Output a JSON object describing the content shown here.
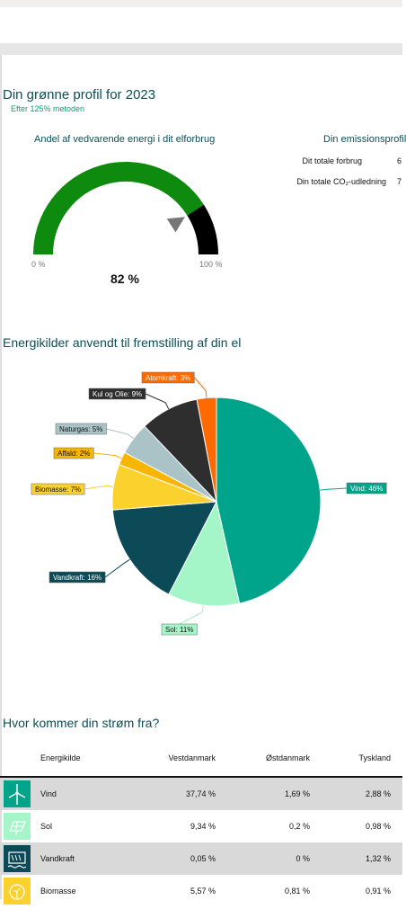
{
  "profile": {
    "title": "Din grønne profil for 2023",
    "subtitle": "Efter 125% metoden"
  },
  "gauge": {
    "title": "Andel af vedvarende energi i dit elforbrug",
    "min_label": "0 %",
    "max_label": "100 %",
    "value_label": "82 %",
    "value": 82,
    "colors": {
      "renewable": "#0e8a0e",
      "rest": "#000000",
      "pointer": "#777777"
    }
  },
  "emissions": {
    "title": "Din emissionsprofil",
    "rows": [
      {
        "label": "Dit totale forbrug",
        "value": "6"
      },
      {
        "label": "Din totale CO₂-udledning",
        "value": "7"
      }
    ]
  },
  "energy_sources": {
    "title": "Energikilder anvendt til fremstilling af din el"
  },
  "chart_data": {
    "type": "pie",
    "title": "Energikilder anvendt til fremstilling af din el",
    "slices": [
      {
        "label": "Vind: 46%",
        "name": "Vind",
        "value": 46,
        "color": "#00a48a"
      },
      {
        "label": "Sol: 11%",
        "name": "Sol",
        "value": 11,
        "color": "#a4f6c8"
      },
      {
        "label": "Vandkraft: 16%",
        "name": "Vandkraft",
        "value": 16,
        "color": "#0d4a57"
      },
      {
        "label": "Biomasse: 7%",
        "name": "Biomasse",
        "value": 7,
        "color": "#fad12d"
      },
      {
        "label": "Affald: 2%",
        "name": "Affald",
        "value": 2,
        "color": "#f7b500"
      },
      {
        "label": "Naturgas: 5%",
        "name": "Naturgas",
        "value": 5,
        "color": "#a9c3c6"
      },
      {
        "label": "Kul og Olie: 9%",
        "name": "Kul og Olie",
        "value": 9,
        "color": "#2e2e2e"
      },
      {
        "label": "Atomkraft: 3%",
        "name": "Atomkraft",
        "value": 3,
        "color": "#ff6a00"
      }
    ]
  },
  "where": {
    "title": "Hvor kommer din strøm fra?",
    "columns": [
      "Energikilde",
      "Vestdanmark",
      "Østdanmark",
      "Tyskland"
    ],
    "rows": [
      {
        "icon": "wind-turbine-icon",
        "name": "Vind",
        "values": [
          "37,74 %",
          "1,69 %",
          "2,88 %"
        ],
        "icon_bg": "#00a48a"
      },
      {
        "icon": "solar-panel-icon",
        "name": "Sol",
        "values": [
          "9,34 %",
          "0,2 %",
          "0,98 %"
        ],
        "icon_bg": "#a4f6c8"
      },
      {
        "icon": "hydro-dam-icon",
        "name": "Vandkraft",
        "values": [
          "0,05 %",
          "0 %",
          "1,32 %"
        ],
        "icon_bg": "#0d4a57"
      },
      {
        "icon": "biomass-icon",
        "name": "Biomasse",
        "values": [
          "5,57 %",
          "0,81 %",
          "0,91 %"
        ],
        "icon_bg": "#fad12d"
      }
    ]
  }
}
